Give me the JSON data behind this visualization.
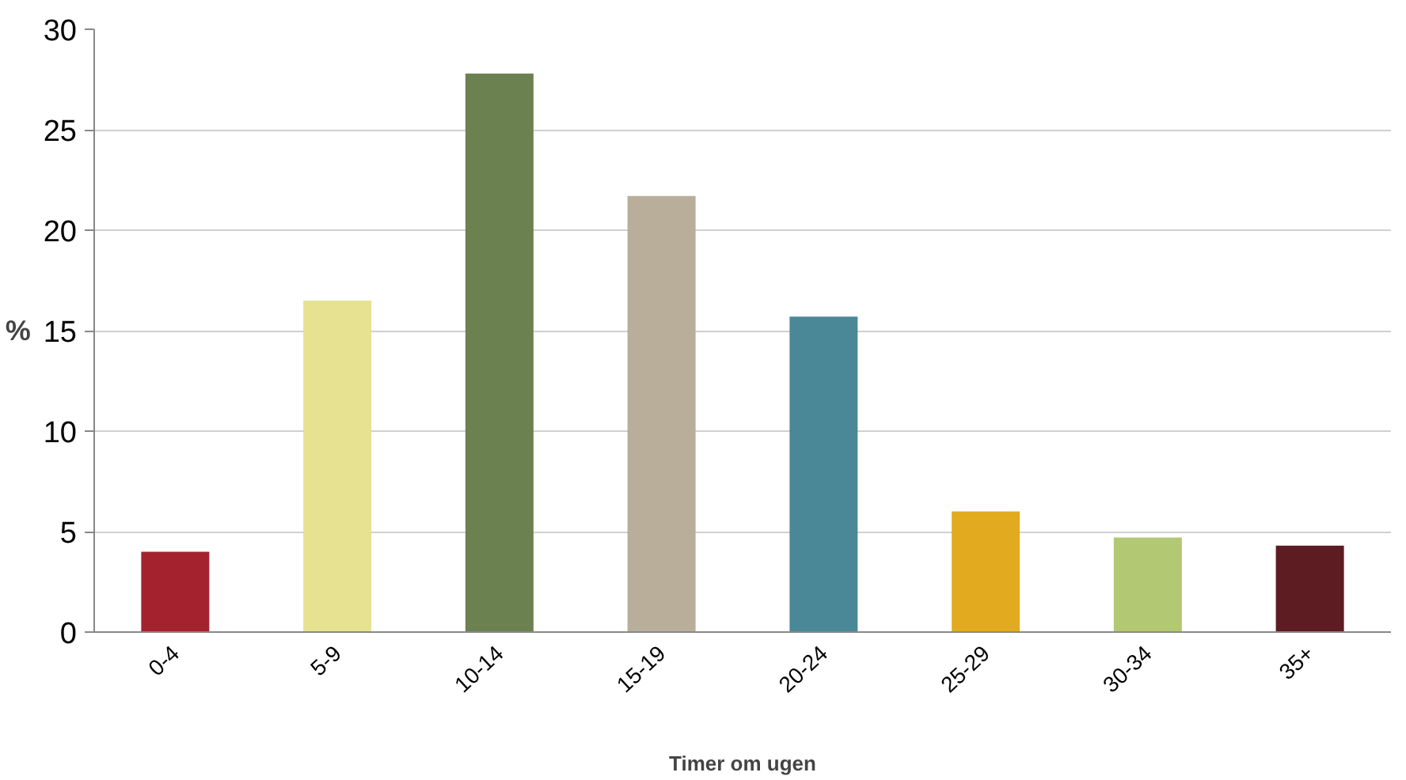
{
  "chart_data": {
    "type": "bar",
    "xlabel": "Timer om ugen",
    "ylabel": "%",
    "categories": [
      "0-4",
      "5-9",
      "10-14",
      "15-19",
      "20-24",
      "25-29",
      "30-34",
      "35+"
    ],
    "values": [
      4.0,
      16.5,
      27.8,
      21.7,
      15.7,
      6.0,
      4.7,
      4.3
    ],
    "colors": [
      "#a3222e",
      "#e6e292",
      "#6b8150",
      "#b9ae9a",
      "#4a8898",
      "#e2aa1e",
      "#b2c873",
      "#5c1c22"
    ],
    "ylim": [
      0,
      30
    ],
    "yticks": [
      0,
      5,
      10,
      15,
      20,
      25,
      30
    ],
    "grid": "y"
  }
}
